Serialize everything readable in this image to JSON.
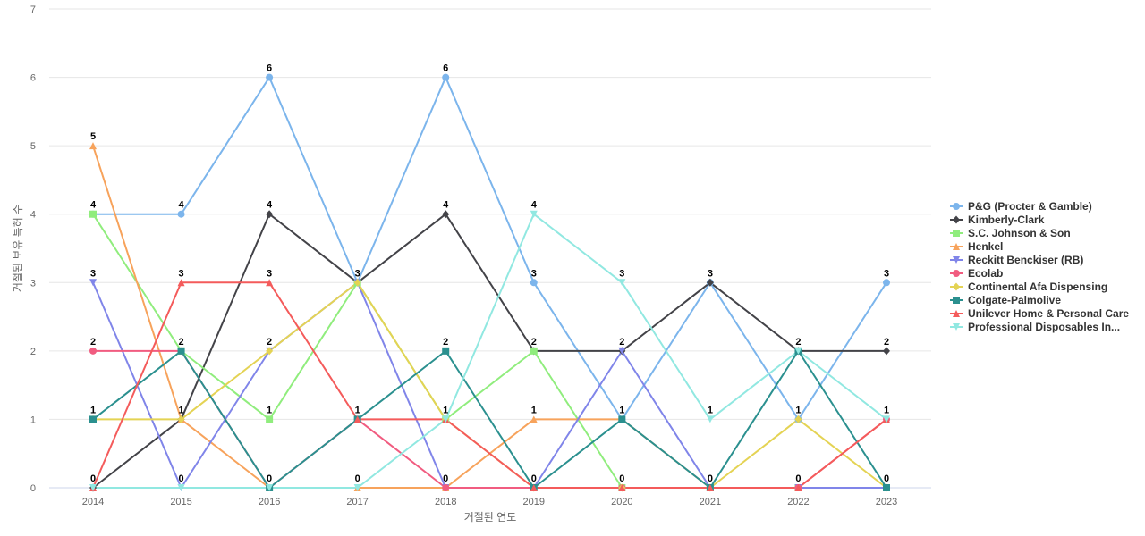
{
  "chart_data": {
    "type": "line",
    "xlabel": "거절된 연도",
    "ylabel": "거절된 보유 특허 수",
    "ylim": [
      0,
      7
    ],
    "yticks": [
      0,
      1,
      2,
      3,
      4,
      5,
      6,
      7
    ],
    "grid": true,
    "legend_position": "right",
    "categories": [
      "2014",
      "2015",
      "2016",
      "2017",
      "2018",
      "2019",
      "2020",
      "2021",
      "2022",
      "2023"
    ],
    "series": [
      {
        "name": "P&G (Procter & Gamble)",
        "color": "#7cb5ec",
        "marker": "circle",
        "values": [
          4,
          4,
          6,
          3,
          6,
          3,
          1,
          3,
          1,
          3
        ]
      },
      {
        "name": "Kimberly-Clark",
        "color": "#434348",
        "marker": "diamond",
        "values": [
          0,
          1,
          4,
          3,
          4,
          2,
          2,
          3,
          2,
          2
        ]
      },
      {
        "name": "S.C. Johnson & Son",
        "color": "#90ed7d",
        "marker": "square",
        "values": [
          4,
          2,
          1,
          3,
          1,
          2,
          0,
          0,
          0,
          0
        ]
      },
      {
        "name": "Henkel",
        "color": "#f7a35c",
        "marker": "triangle",
        "values": [
          5,
          1,
          0,
          0,
          0,
          1,
          1,
          0,
          0,
          0
        ]
      },
      {
        "name": "Reckitt Benckiser (RB)",
        "color": "#8085e9",
        "marker": "triangle-down",
        "values": [
          3,
          0,
          2,
          3,
          0,
          0,
          2,
          0,
          0,
          0
        ]
      },
      {
        "name": "Ecolab",
        "color": "#f15c80",
        "marker": "circle",
        "values": [
          2,
          2,
          0,
          1,
          0,
          0,
          0,
          0,
          0,
          1
        ]
      },
      {
        "name": "Continental Afa Dispensing",
        "color": "#e4d354",
        "marker": "diamond",
        "values": [
          1,
          1,
          2,
          3,
          1,
          0,
          0,
          0,
          1,
          0
        ]
      },
      {
        "name": "Colgate-Palmolive",
        "color": "#2b908f",
        "marker": "square",
        "values": [
          1,
          2,
          0,
          1,
          2,
          0,
          1,
          0,
          2,
          0
        ]
      },
      {
        "name": "Unilever Home & Personal Care",
        "color": "#f45b5b",
        "marker": "triangle",
        "values": [
          0,
          3,
          3,
          1,
          1,
          0,
          0,
          0,
          0,
          1
        ]
      },
      {
        "name": "Professional Disposables In...",
        "color": "#91e8e1",
        "marker": "triangle-down",
        "values": [
          0,
          0,
          0,
          0,
          1,
          4,
          3,
          1,
          2,
          1
        ]
      }
    ],
    "data_labels": [
      {
        "category": "2014",
        "labels": [
          "5",
          "4",
          "3",
          "2",
          "1",
          "0"
        ]
      },
      {
        "category": "2015",
        "labels": [
          "4",
          "3",
          "2",
          "1",
          "0"
        ]
      },
      {
        "category": "2016",
        "labels": [
          "6",
          "4",
          "3",
          "2",
          "1",
          "0"
        ]
      },
      {
        "category": "2017",
        "labels": [
          "3",
          "1",
          "0"
        ]
      },
      {
        "category": "2018",
        "labels": [
          "6",
          "4",
          "2",
          "1",
          "0"
        ]
      },
      {
        "category": "2019",
        "labels": [
          "4",
          "3",
          "2",
          "1",
          "0"
        ]
      },
      {
        "category": "2020",
        "labels": [
          "3",
          "2",
          "1",
          "0"
        ]
      },
      {
        "category": "2021",
        "labels": [
          "3",
          "1",
          "0"
        ]
      },
      {
        "category": "2022",
        "labels": [
          "2",
          "1",
          "0"
        ]
      },
      {
        "category": "2023",
        "labels": [
          "3",
          "2",
          "1",
          "0"
        ]
      }
    ]
  }
}
